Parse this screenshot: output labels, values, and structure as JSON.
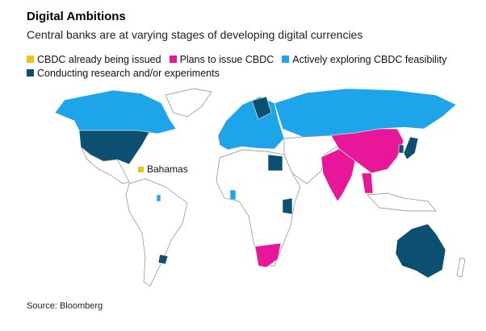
{
  "title": "Digital Ambitions",
  "subtitle": "Central banks are at varying stages of developing digital currencies",
  "legend": [
    {
      "label": "CBDC already being issued",
      "color": "#f1c40f"
    },
    {
      "label": "Plans to issue CBDC",
      "color": "#e8179a"
    },
    {
      "label": "Actively exploring CBDC feasibility",
      "color": "#1ea5e9"
    },
    {
      "label": "Conducting research and/or experiments",
      "color": "#0d4f70"
    }
  ],
  "annotation": "Bahamas",
  "source": "Source: Bloomberg"
}
